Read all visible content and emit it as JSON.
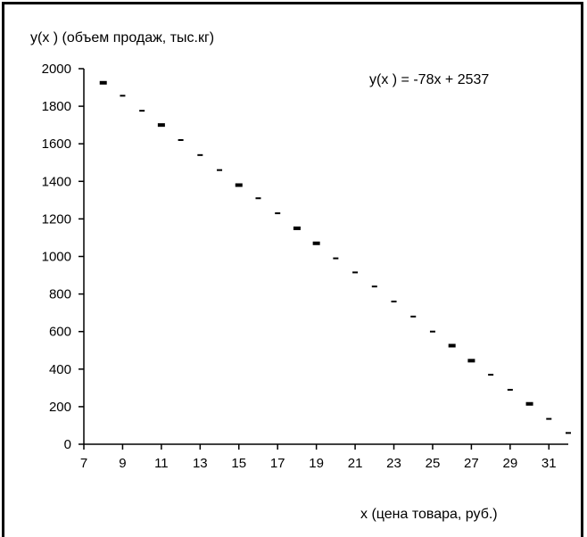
{
  "chart_data": {
    "type": "scatter",
    "ylabel": "y(x ) (объем продаж, тыс.кг)",
    "xlabel": "x  (цена товара, руб.)",
    "annotation": "y(x ) = -78x  + 2537",
    "xlim": [
      7,
      32
    ],
    "ylim": [
      0,
      2000
    ],
    "x_ticks": [
      7,
      9,
      11,
      13,
      15,
      17,
      19,
      21,
      23,
      25,
      27,
      29,
      31
    ],
    "y_ticks": [
      0,
      200,
      400,
      600,
      800,
      1000,
      1200,
      1400,
      1600,
      1800,
      2000
    ],
    "grid": false,
    "point_color": "#000000",
    "points": [
      {
        "x": 8,
        "y": 1925,
        "emphasized": true
      },
      {
        "x": 9,
        "y": 1856,
        "emphasized": false
      },
      {
        "x": 10,
        "y": 1776,
        "emphasized": false
      },
      {
        "x": 11,
        "y": 1700,
        "emphasized": true
      },
      {
        "x": 12,
        "y": 1620,
        "emphasized": false
      },
      {
        "x": 13,
        "y": 1540,
        "emphasized": false
      },
      {
        "x": 14,
        "y": 1460,
        "emphasized": false
      },
      {
        "x": 15,
        "y": 1380,
        "emphasized": true
      },
      {
        "x": 16,
        "y": 1310,
        "emphasized": false
      },
      {
        "x": 17,
        "y": 1230,
        "emphasized": false
      },
      {
        "x": 18,
        "y": 1150,
        "emphasized": true
      },
      {
        "x": 19,
        "y": 1070,
        "emphasized": true
      },
      {
        "x": 20,
        "y": 990,
        "emphasized": false
      },
      {
        "x": 21,
        "y": 915,
        "emphasized": false
      },
      {
        "x": 22,
        "y": 840,
        "emphasized": false
      },
      {
        "x": 23,
        "y": 760,
        "emphasized": false
      },
      {
        "x": 24,
        "y": 680,
        "emphasized": false
      },
      {
        "x": 25,
        "y": 600,
        "emphasized": false
      },
      {
        "x": 26,
        "y": 525,
        "emphasized": true
      },
      {
        "x": 27,
        "y": 445,
        "emphasized": true
      },
      {
        "x": 28,
        "y": 370,
        "emphasized": false
      },
      {
        "x": 29,
        "y": 290,
        "emphasized": false
      },
      {
        "x": 30,
        "y": 215,
        "emphasized": true
      },
      {
        "x": 31,
        "y": 135,
        "emphasized": false
      },
      {
        "x": 32,
        "y": 60,
        "emphasized": false
      }
    ]
  }
}
